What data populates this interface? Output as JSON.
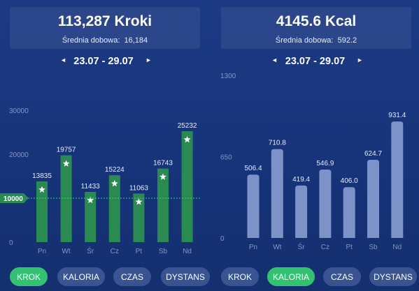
{
  "steps_panel": {
    "total": "113,287 Kroki",
    "avg_label": "Średnia dobowa:",
    "avg_value": "16,184",
    "date_range": "23.07 - 29.07",
    "prev_icon": "◄",
    "next_icon": "►",
    "target_label": "10000",
    "tabs": [
      "KROK",
      "KALORIA",
      "CZAS",
      "DYSTANS"
    ],
    "active_tab": 0
  },
  "calories_panel": {
    "total": "4145.6 Kcal",
    "avg_label": "Średnia dobowa:",
    "avg_value": "592.2",
    "date_range": "23.07 - 29.07",
    "prev_icon": "◄",
    "next_icon": "►",
    "tabs": [
      "KROK",
      "KALORIA",
      "CZAS",
      "DYSTANS"
    ],
    "active_tab": 1
  },
  "colors": {
    "bar_green": "#2b8a52",
    "bar_light": "#8fa3d6",
    "active_tab": "#33c271",
    "target_line": "#3fcf7f"
  },
  "chart_data": [
    {
      "type": "bar",
      "categories": [
        "Pn",
        "Wt",
        "Śr",
        "Cz",
        "Pt",
        "Sb",
        "Nd"
      ],
      "values": [
        13835,
        19757,
        11433,
        15224,
        11063,
        16743,
        25232
      ],
      "value_labels": [
        "13835",
        "19757",
        "11433",
        "15224",
        "11063",
        "16743",
        "25232"
      ],
      "yticks": [
        "30000",
        "20000",
        "10000",
        "0"
      ],
      "ylim": [
        0,
        30000
      ],
      "target": 10000,
      "star_marker_on_bars": true
    },
    {
      "type": "bar",
      "categories": [
        "Pn",
        "Wt",
        "Śr",
        "Cz",
        "Pt",
        "Sb",
        "Nd"
      ],
      "values": [
        506.4,
        710.8,
        419.4,
        546.9,
        406.0,
        624.7,
        931.4
      ],
      "value_labels": [
        "506.4",
        "710.8",
        "419.4",
        "546.9",
        "406.0",
        "624.7",
        "931.4"
      ],
      "yticks": [
        "1300",
        "650",
        "0"
      ],
      "ylim": [
        0,
        1300
      ]
    }
  ]
}
